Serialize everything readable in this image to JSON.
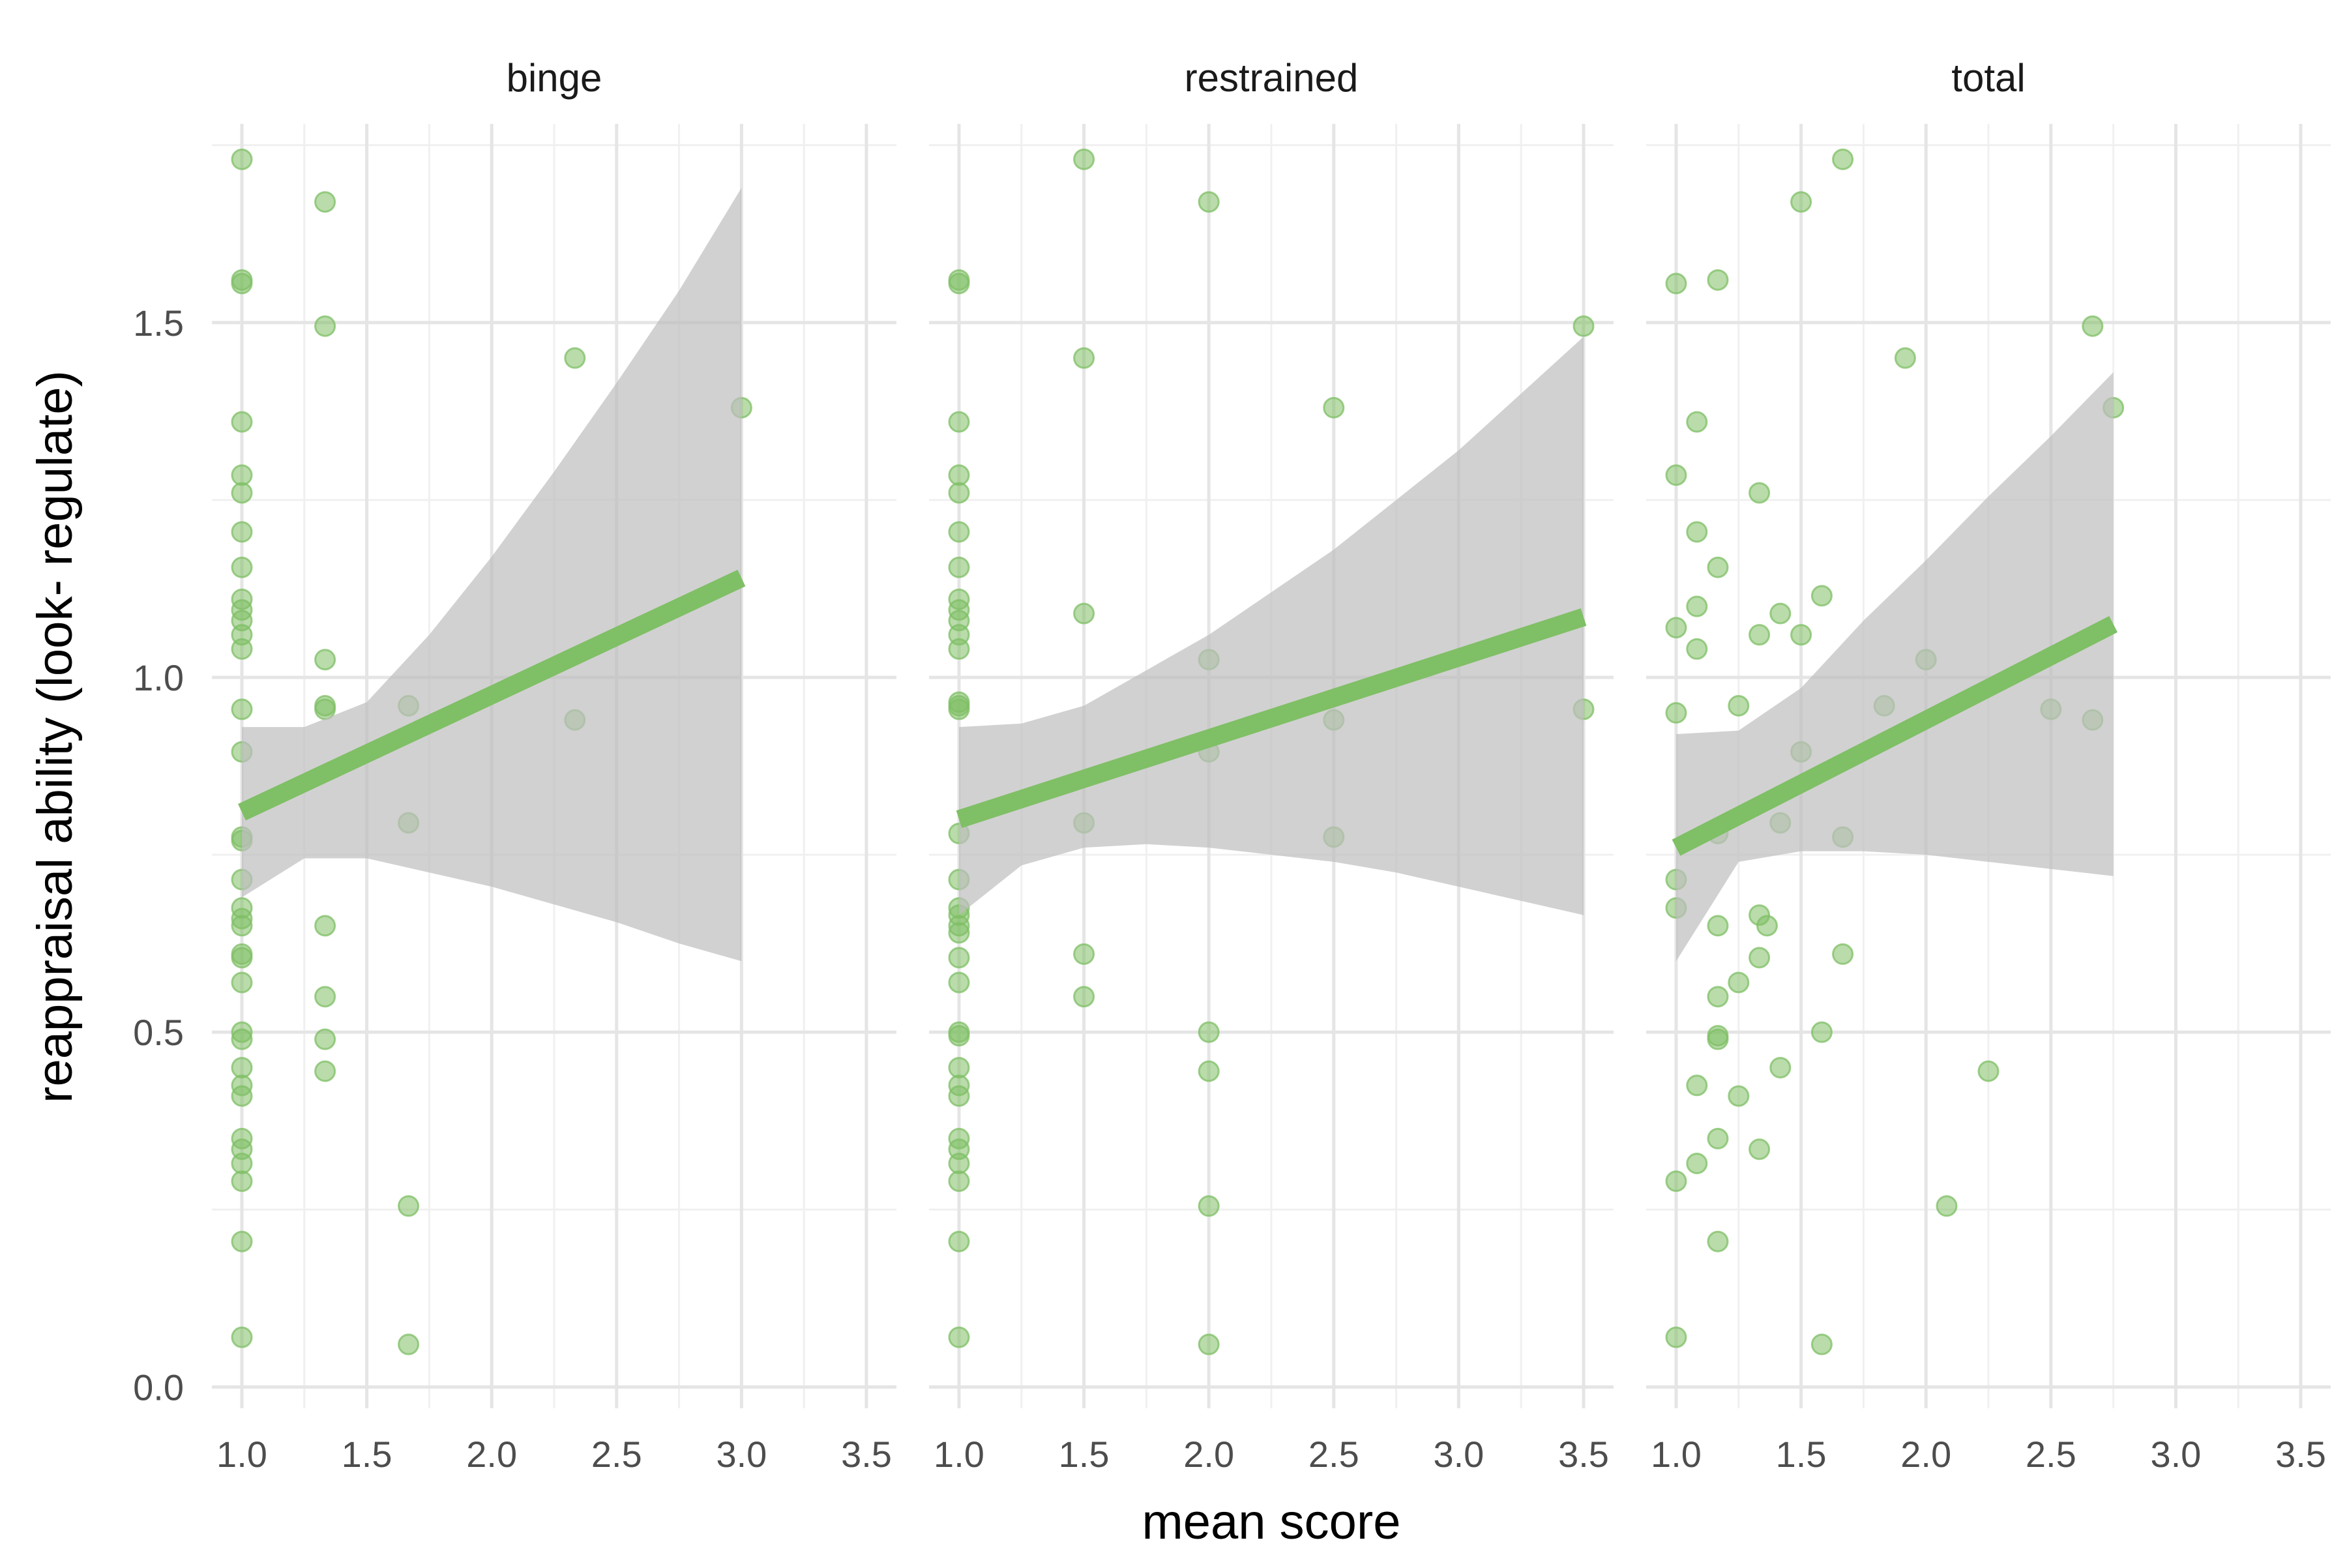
{
  "chart_data": {
    "type": "scatter",
    "xlabel": "mean score",
    "ylabel": "reappraisal ability (look- regulate)",
    "xlim": [
      0.88,
      3.62
    ],
    "ylim": [
      -0.03,
      1.78
    ],
    "x_ticks": [
      "1.0",
      "1.5",
      "2.0",
      "2.5",
      "3.0",
      "3.5"
    ],
    "y_ticks": [
      "0.0",
      "0.5",
      "1.0",
      "1.5"
    ],
    "grid": true,
    "legend": "none",
    "colors": {
      "points": "#7fbf65",
      "fit_line": "#7fbf65",
      "ribbon": "#bdbdbd",
      "grid_major": "#e5e5e5",
      "grid_minor": "#f0f0f0"
    },
    "facets": [
      {
        "label": "binge",
        "points": [
          [
            1.0,
            1.73
          ],
          [
            1.0,
            1.56
          ],
          [
            1.0,
            1.555
          ],
          [
            1.0,
            1.36
          ],
          [
            1.0,
            1.285
          ],
          [
            1.0,
            1.26
          ],
          [
            1.0,
            1.205
          ],
          [
            1.0,
            1.155
          ],
          [
            1.0,
            1.11
          ],
          [
            1.0,
            1.095
          ],
          [
            1.0,
            1.08
          ],
          [
            1.0,
            1.06
          ],
          [
            1.0,
            1.04
          ],
          [
            1.0,
            0.955
          ],
          [
            1.0,
            0.895
          ],
          [
            1.0,
            0.775
          ],
          [
            1.0,
            0.77
          ],
          [
            1.0,
            0.715
          ],
          [
            1.0,
            0.675
          ],
          [
            1.0,
            0.66
          ],
          [
            1.0,
            0.65
          ],
          [
            1.0,
            0.61
          ],
          [
            1.0,
            0.605
          ],
          [
            1.0,
            0.57
          ],
          [
            1.0,
            0.5
          ],
          [
            1.0,
            0.49
          ],
          [
            1.0,
            0.45
          ],
          [
            1.0,
            0.425
          ],
          [
            1.0,
            0.41
          ],
          [
            1.0,
            0.35
          ],
          [
            1.0,
            0.335
          ],
          [
            1.0,
            0.315
          ],
          [
            1.0,
            0.29
          ],
          [
            1.0,
            0.205
          ],
          [
            1.0,
            0.07
          ],
          [
            1.333,
            1.67
          ],
          [
            1.333,
            1.495
          ],
          [
            1.333,
            1.025
          ],
          [
            1.333,
            0.96
          ],
          [
            1.333,
            0.955
          ],
          [
            1.333,
            0.65
          ],
          [
            1.333,
            0.55
          ],
          [
            1.333,
            0.49
          ],
          [
            1.333,
            0.445
          ],
          [
            1.667,
            0.96
          ],
          [
            1.667,
            0.795
          ],
          [
            1.667,
            0.255
          ],
          [
            1.667,
            0.06
          ],
          [
            2.333,
            1.45
          ],
          [
            2.333,
            0.94
          ],
          [
            3.0,
            1.38
          ]
        ],
        "fit": {
          "x": [
            1.0,
            3.0
          ],
          "y": [
            0.81,
            1.14
          ]
        },
        "ribbon": {
          "x": [
            1.0,
            1.25,
            1.5,
            1.75,
            2.0,
            2.25,
            2.5,
            2.75,
            3.0
          ],
          "lower": [
            0.69,
            0.745,
            0.745,
            0.725,
            0.705,
            0.68,
            0.655,
            0.625,
            0.6
          ],
          "upper": [
            0.93,
            0.93,
            0.965,
            1.06,
            1.17,
            1.29,
            1.415,
            1.545,
            1.69
          ]
        }
      },
      {
        "label": "restrained",
        "points": [
          [
            1.0,
            1.56
          ],
          [
            1.0,
            1.555
          ],
          [
            1.0,
            1.36
          ],
          [
            1.0,
            1.285
          ],
          [
            1.0,
            1.26
          ],
          [
            1.0,
            1.205
          ],
          [
            1.0,
            1.155
          ],
          [
            1.0,
            1.11
          ],
          [
            1.0,
            1.095
          ],
          [
            1.0,
            1.08
          ],
          [
            1.0,
            1.06
          ],
          [
            1.0,
            1.04
          ],
          [
            1.0,
            0.965
          ],
          [
            1.0,
            0.96
          ],
          [
            1.0,
            0.955
          ],
          [
            1.0,
            0.78
          ],
          [
            1.0,
            0.715
          ],
          [
            1.0,
            0.675
          ],
          [
            1.0,
            0.665
          ],
          [
            1.0,
            0.65
          ],
          [
            1.0,
            0.64
          ],
          [
            1.0,
            0.605
          ],
          [
            1.0,
            0.57
          ],
          [
            1.0,
            0.5
          ],
          [
            1.0,
            0.495
          ],
          [
            1.0,
            0.45
          ],
          [
            1.0,
            0.425
          ],
          [
            1.0,
            0.41
          ],
          [
            1.0,
            0.35
          ],
          [
            1.0,
            0.335
          ],
          [
            1.0,
            0.315
          ],
          [
            1.0,
            0.29
          ],
          [
            1.0,
            0.205
          ],
          [
            1.0,
            0.07
          ],
          [
            1.5,
            1.73
          ],
          [
            1.5,
            1.45
          ],
          [
            1.5,
            1.09
          ],
          [
            1.5,
            0.795
          ],
          [
            1.5,
            0.61
          ],
          [
            1.5,
            0.55
          ],
          [
            2.0,
            1.67
          ],
          [
            2.0,
            1.025
          ],
          [
            2.0,
            0.895
          ],
          [
            2.0,
            0.5
          ],
          [
            2.0,
            0.445
          ],
          [
            2.0,
            0.255
          ],
          [
            2.0,
            0.06
          ],
          [
            2.5,
            1.38
          ],
          [
            2.5,
            0.94
          ],
          [
            2.5,
            0.775
          ],
          [
            3.5,
            1.495
          ],
          [
            3.5,
            0.955
          ]
        ],
        "fit": {
          "x": [
            1.0,
            3.5
          ],
          "y": [
            0.8,
            1.085
          ]
        },
        "ribbon": {
          "x": [
            1.0,
            1.25,
            1.5,
            1.75,
            2.0,
            2.25,
            2.5,
            2.75,
            3.0,
            3.25,
            3.5
          ],
          "lower": [
            0.665,
            0.735,
            0.76,
            0.765,
            0.76,
            0.75,
            0.74,
            0.725,
            0.705,
            0.685,
            0.665
          ],
          "upper": [
            0.93,
            0.935,
            0.96,
            1.01,
            1.06,
            1.12,
            1.18,
            1.25,
            1.32,
            1.4,
            1.48
          ]
        }
      },
      {
        "label": "total",
        "points": [
          [
            1.0,
            1.555
          ],
          [
            1.0,
            1.285
          ],
          [
            1.0,
            1.07
          ],
          [
            1.0,
            0.95
          ],
          [
            1.0,
            0.715
          ],
          [
            1.0,
            0.675
          ],
          [
            1.0,
            0.29
          ],
          [
            1.0,
            0.07
          ],
          [
            1.083,
            1.36
          ],
          [
            1.083,
            1.205
          ],
          [
            1.083,
            1.1
          ],
          [
            1.083,
            1.04
          ],
          [
            1.083,
            0.425
          ],
          [
            1.083,
            0.315
          ],
          [
            1.167,
            1.56
          ],
          [
            1.167,
            1.155
          ],
          [
            1.167,
            0.78
          ],
          [
            1.167,
            0.65
          ],
          [
            1.167,
            0.55
          ],
          [
            1.167,
            0.495
          ],
          [
            1.167,
            0.49
          ],
          [
            1.167,
            0.35
          ],
          [
            1.167,
            0.205
          ],
          [
            1.25,
            0.96
          ],
          [
            1.25,
            0.57
          ],
          [
            1.25,
            0.41
          ],
          [
            1.333,
            1.26
          ],
          [
            1.333,
            1.06
          ],
          [
            1.333,
            0.665
          ],
          [
            1.333,
            0.605
          ],
          [
            1.333,
            0.335
          ],
          [
            1.364,
            0.65
          ],
          [
            1.417,
            1.09
          ],
          [
            1.417,
            0.795
          ],
          [
            1.417,
            0.45
          ],
          [
            1.5,
            1.67
          ],
          [
            1.5,
            1.06
          ],
          [
            1.5,
            0.895
          ],
          [
            1.583,
            1.115
          ],
          [
            1.583,
            0.5
          ],
          [
            1.583,
            0.06
          ],
          [
            1.667,
            1.73
          ],
          [
            1.667,
            0.775
          ],
          [
            1.667,
            0.61
          ],
          [
            1.833,
            0.96
          ],
          [
            1.917,
            1.45
          ],
          [
            2.0,
            1.025
          ],
          [
            2.083,
            0.255
          ],
          [
            2.25,
            0.445
          ],
          [
            2.5,
            0.955
          ],
          [
            2.667,
            1.495
          ],
          [
            2.667,
            0.94
          ],
          [
            2.75,
            1.38
          ]
        ],
        "fit": {
          "x": [
            1.0,
            2.75
          ],
          "y": [
            0.76,
            1.075
          ]
        },
        "ribbon": {
          "x": [
            1.0,
            1.25,
            1.5,
            1.75,
            2.0,
            2.25,
            2.5,
            2.75
          ],
          "lower": [
            0.6,
            0.74,
            0.755,
            0.755,
            0.75,
            0.74,
            0.73,
            0.72
          ],
          "upper": [
            0.92,
            0.925,
            0.985,
            1.08,
            1.165,
            1.255,
            1.34,
            1.43
          ]
        }
      }
    ]
  }
}
